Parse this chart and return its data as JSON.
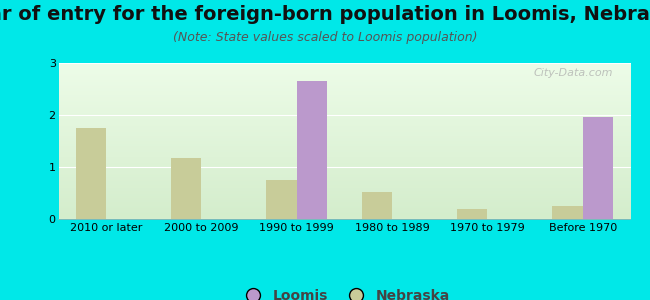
{
  "title": "Year of entry for the foreign-born population in Loomis, Nebraska",
  "subtitle": "(Note: State values scaled to Loomis population)",
  "categories": [
    "2010 or later",
    "2000 to 2009",
    "1990 to 1999",
    "1980 to 1989",
    "1970 to 1979",
    "Before 1970"
  ],
  "loomis_values": [
    0,
    0,
    2.65,
    0,
    0,
    1.97
  ],
  "nebraska_values": [
    1.75,
    1.17,
    0.75,
    0.52,
    0.2,
    0.25
  ],
  "loomis_color": "#bb99cc",
  "nebraska_color": "#c8cc99",
  "background_color": "#00e8e8",
  "plot_bg_colors": [
    "#d4edcc",
    "#edfce8"
  ],
  "ylim": [
    0,
    3
  ],
  "yticks": [
    0,
    1,
    2,
    3
  ],
  "bar_width": 0.32,
  "legend_loomis": "Loomis",
  "legend_nebraska": "Nebraska",
  "title_fontsize": 14,
  "subtitle_fontsize": 9,
  "tick_fontsize": 8,
  "watermark": "City-Data.com"
}
